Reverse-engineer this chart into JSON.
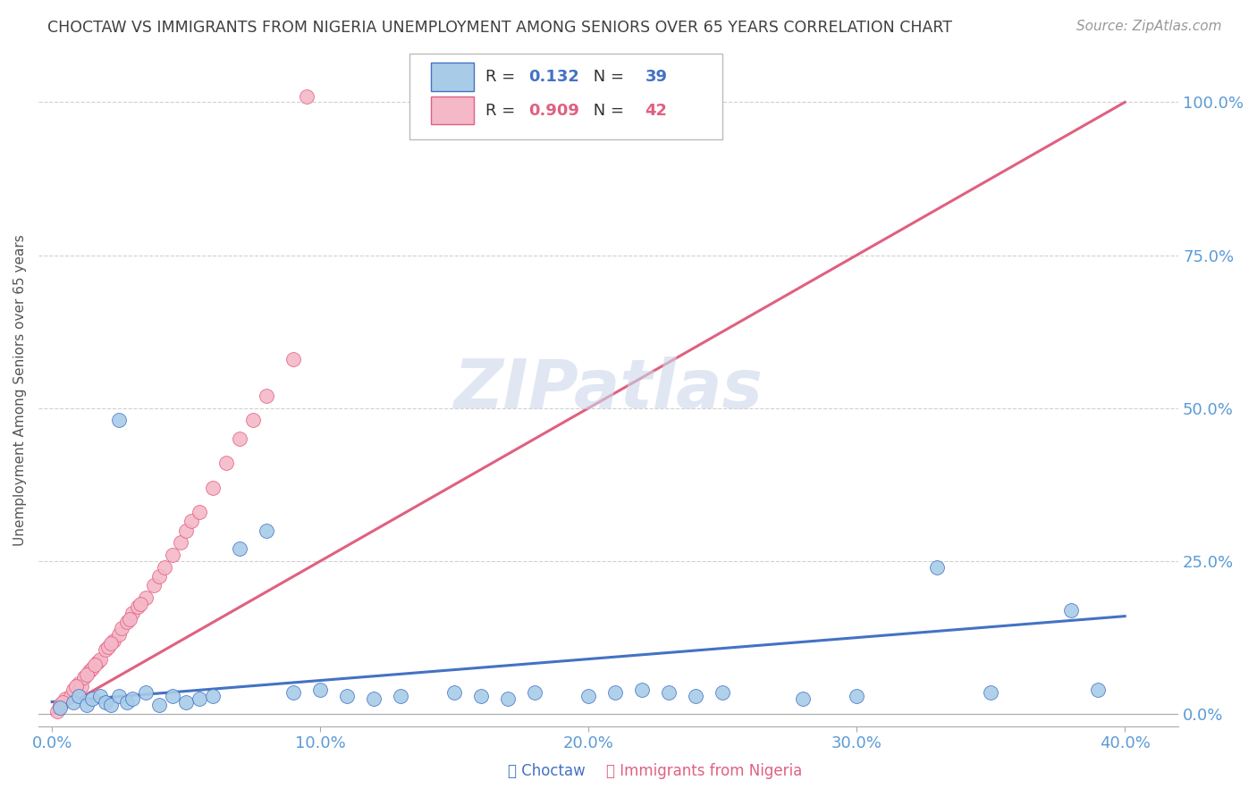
{
  "title": "CHOCTAW VS IMMIGRANTS FROM NIGERIA UNEMPLOYMENT AMONG SENIORS OVER 65 YEARS CORRELATION CHART",
  "source": "Source: ZipAtlas.com",
  "ylabel": "Unemployment Among Seniors over 65 years",
  "xlabel_ticks": [
    "0.0%",
    "10.0%",
    "20.0%",
    "30.0%",
    "40.0%"
  ],
  "xlabel_vals": [
    0,
    10,
    20,
    30,
    40
  ],
  "ylabel_ticks": [
    "0.0%",
    "25.0%",
    "50.0%",
    "75.0%",
    "100.0%"
  ],
  "ylabel_vals": [
    0,
    25,
    50,
    75,
    100
  ],
  "xlim": [
    -0.5,
    42
  ],
  "ylim": [
    -2,
    108
  ],
  "choctaw_R": 0.132,
  "choctaw_N": 39,
  "nigeria_R": 0.909,
  "nigeria_N": 42,
  "choctaw_color": "#a8cce8",
  "nigeria_color": "#f4b8c8",
  "choctaw_line_color": "#4472c4",
  "nigeria_line_color": "#e06080",
  "watermark": "ZIPatlas",
  "watermark_color": "#ccd8ec",
  "title_color": "#404040",
  "axis_label_color": "#5b9bd5",
  "grid_color": "#d0d0d0",
  "background_color": "#ffffff",
  "choctaw_scatter_x": [
    0.3,
    0.8,
    1.0,
    1.3,
    1.5,
    1.8,
    2.0,
    2.2,
    2.5,
    2.8,
    3.0,
    3.5,
    4.0,
    4.5,
    5.0,
    5.5,
    6.0,
    7.0,
    8.0,
    9.0,
    10.0,
    11.0,
    12.0,
    13.0,
    15.0,
    16.0,
    17.0,
    18.0,
    20.0,
    21.0,
    22.0,
    23.0,
    24.0,
    25.0,
    28.0,
    30.0,
    35.0,
    38.0,
    39.0
  ],
  "choctaw_scatter_y": [
    1.0,
    2.0,
    3.0,
    1.5,
    2.5,
    3.0,
    2.0,
    1.5,
    3.0,
    2.0,
    2.5,
    3.5,
    1.5,
    3.0,
    2.0,
    2.5,
    3.0,
    27.0,
    30.0,
    3.5,
    4.0,
    3.0,
    2.5,
    3.0,
    3.5,
    3.0,
    2.5,
    3.5,
    3.0,
    3.5,
    4.0,
    3.5,
    3.0,
    3.5,
    2.5,
    3.0,
    3.5,
    17.0,
    4.0
  ],
  "choctaw_outlier_x": 2.5,
  "choctaw_outlier_y": 48.0,
  "choctaw_outlier2_x": 33.0,
  "choctaw_outlier2_y": 24.0,
  "nigeria_scatter_x": [
    0.2,
    0.3,
    0.5,
    0.7,
    0.8,
    1.0,
    1.1,
    1.2,
    1.4,
    1.5,
    1.7,
    1.8,
    2.0,
    2.1,
    2.3,
    2.5,
    2.6,
    2.8,
    3.0,
    3.2,
    3.5,
    3.8,
    4.0,
    4.2,
    4.5,
    4.8,
    5.0,
    5.2,
    5.5,
    6.0,
    6.5,
    7.0,
    7.5,
    8.0,
    9.0,
    0.4,
    0.9,
    1.3,
    1.6,
    2.2,
    2.9,
    3.3
  ],
  "nigeria_scatter_y": [
    0.5,
    1.5,
    2.5,
    3.0,
    4.0,
    5.0,
    4.5,
    6.0,
    7.0,
    7.5,
    8.5,
    9.0,
    10.5,
    11.0,
    12.0,
    13.0,
    14.0,
    15.0,
    16.5,
    17.5,
    19.0,
    21.0,
    22.5,
    24.0,
    26.0,
    28.0,
    30.0,
    31.5,
    33.0,
    37.0,
    41.0,
    45.0,
    48.0,
    52.0,
    58.0,
    2.0,
    4.5,
    6.5,
    8.0,
    11.5,
    15.5,
    18.0
  ],
  "nigeria_top_x": 9.5,
  "nigeria_top_y": 101.0,
  "choctaw_line_x": [
    0,
    40
  ],
  "choctaw_line_y": [
    2.0,
    16.0
  ],
  "nigeria_line_x": [
    0,
    40
  ],
  "nigeria_line_y": [
    0,
    100.0
  ]
}
